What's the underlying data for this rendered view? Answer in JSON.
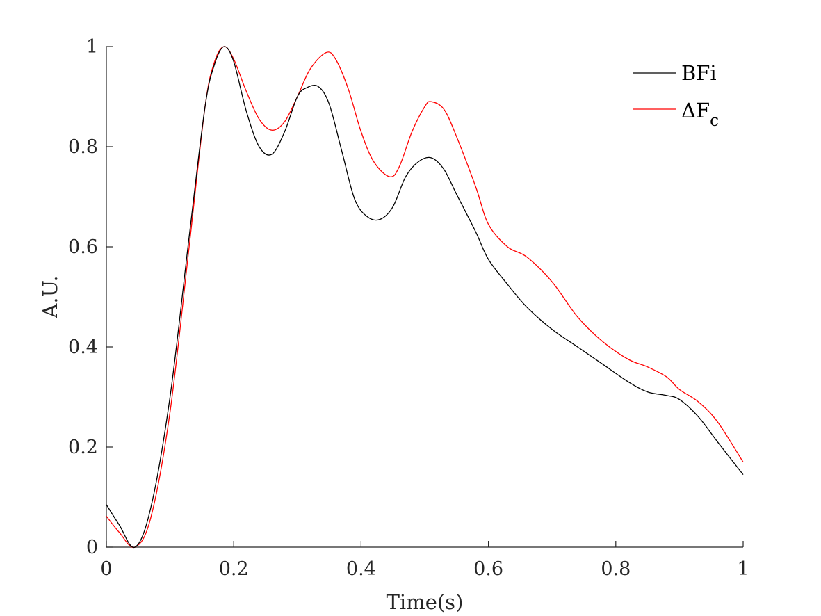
{
  "chart_data": {
    "type": "line",
    "xlabel": "Time(s)",
    "ylabel": "A.U.",
    "xlim": [
      0,
      1
    ],
    "ylim": [
      0,
      1
    ],
    "xticks": [
      0,
      0.2,
      0.4,
      0.6,
      0.8,
      1
    ],
    "xtick_labels": [
      "0",
      "0.2",
      "0.4",
      "0.6",
      "0.8",
      "1"
    ],
    "yticks": [
      0,
      0.2,
      0.4,
      0.6,
      0.8,
      1
    ],
    "ytick_labels": [
      "0",
      "0.2",
      "0.4",
      "0.6",
      "0.8",
      "1"
    ],
    "grid": false,
    "legend_position": "top-right",
    "series": [
      {
        "name": "BFi",
        "color": "#000000",
        "x": [
          0,
          0.02,
          0.045,
          0.07,
          0.1,
          0.13,
          0.155,
          0.17,
          0.185,
          0.2,
          0.22,
          0.24,
          0.26,
          0.28,
          0.3,
          0.315,
          0.333,
          0.35,
          0.37,
          0.39,
          0.41,
          0.43,
          0.45,
          0.47,
          0.49,
          0.51,
          0.53,
          0.55,
          0.58,
          0.6,
          0.63,
          0.66,
          0.7,
          0.74,
          0.78,
          0.82,
          0.85,
          0.88,
          0.9,
          0.93,
          0.96,
          1.0
        ],
        "y": [
          0.085,
          0.045,
          0.0,
          0.08,
          0.3,
          0.62,
          0.88,
          0.965,
          1.0,
          0.97,
          0.87,
          0.8,
          0.785,
          0.83,
          0.9,
          0.918,
          0.92,
          0.885,
          0.79,
          0.695,
          0.66,
          0.655,
          0.68,
          0.74,
          0.77,
          0.778,
          0.755,
          0.705,
          0.63,
          0.575,
          0.525,
          0.48,
          0.435,
          0.4,
          0.365,
          0.33,
          0.31,
          0.303,
          0.295,
          0.26,
          0.21,
          0.145
        ]
      },
      {
        "name": "ΔF_c",
        "color": "#ff0000",
        "x": [
          0,
          0.02,
          0.045,
          0.07,
          0.1,
          0.13,
          0.155,
          0.17,
          0.185,
          0.2,
          0.22,
          0.24,
          0.26,
          0.28,
          0.3,
          0.32,
          0.345,
          0.36,
          0.38,
          0.4,
          0.42,
          0.445,
          0.46,
          0.48,
          0.5,
          0.51,
          0.53,
          0.55,
          0.58,
          0.6,
          0.63,
          0.66,
          0.7,
          0.74,
          0.78,
          0.82,
          0.85,
          0.88,
          0.9,
          0.93,
          0.96,
          1.0
        ],
        "y": [
          0.062,
          0.03,
          0.0,
          0.06,
          0.27,
          0.6,
          0.88,
          0.97,
          1.0,
          0.975,
          0.91,
          0.855,
          0.833,
          0.85,
          0.9,
          0.955,
          0.988,
          0.975,
          0.915,
          0.83,
          0.77,
          0.74,
          0.76,
          0.83,
          0.88,
          0.89,
          0.875,
          0.82,
          0.72,
          0.645,
          0.6,
          0.58,
          0.53,
          0.46,
          0.41,
          0.375,
          0.36,
          0.34,
          0.315,
          0.29,
          0.25,
          0.17
        ]
      }
    ]
  }
}
